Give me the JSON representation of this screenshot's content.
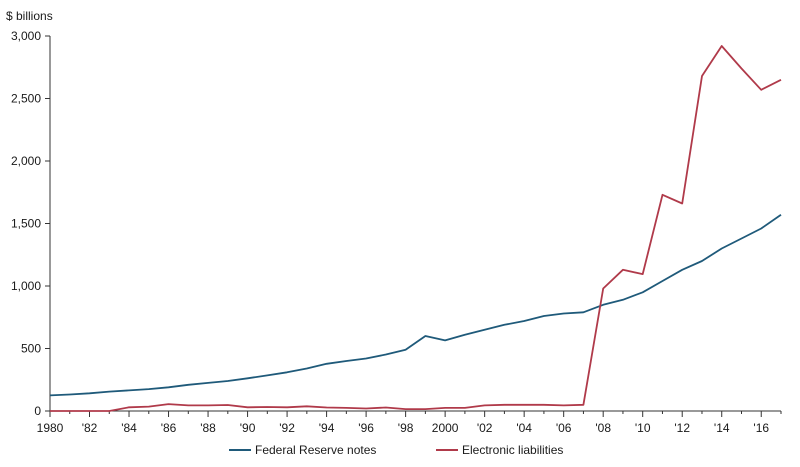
{
  "chart_data": {
    "type": "line",
    "title": "",
    "xlabel": "",
    "ylabel": "$ billions",
    "ylim": [
      0,
      3000
    ],
    "xlim": [
      1980,
      2017
    ],
    "grid": false,
    "legend_placement": "bottom-center",
    "y_ticks": [
      {
        "value": 0,
        "label": "0"
      },
      {
        "value": 500,
        "label": "500"
      },
      {
        "value": 1000,
        "label": "1,000"
      },
      {
        "value": 1500,
        "label": "1,500"
      },
      {
        "value": 2000,
        "label": "2,000"
      },
      {
        "value": 2500,
        "label": "2,500"
      },
      {
        "value": 3000,
        "label": "3,000"
      }
    ],
    "x_ticks": [
      {
        "value": 1980,
        "label": "1980"
      },
      {
        "value": 1982,
        "label": "'82"
      },
      {
        "value": 1984,
        "label": "'84"
      },
      {
        "value": 1986,
        "label": "'86"
      },
      {
        "value": 1988,
        "label": "'88"
      },
      {
        "value": 1990,
        "label": "'90"
      },
      {
        "value": 1992,
        "label": "'92"
      },
      {
        "value": 1994,
        "label": "'94"
      },
      {
        "value": 1996,
        "label": "'96"
      },
      {
        "value": 1998,
        "label": "'98"
      },
      {
        "value": 2000,
        "label": "2000"
      },
      {
        "value": 2002,
        "label": "'02"
      },
      {
        "value": 2004,
        "label": "'04"
      },
      {
        "value": 2006,
        "label": "'06"
      },
      {
        "value": 2008,
        "label": "'08"
      },
      {
        "value": 2010,
        "label": "'10"
      },
      {
        "value": 2012,
        "label": "'12"
      },
      {
        "value": 2014,
        "label": "'14"
      },
      {
        "value": 2016,
        "label": "'16"
      }
    ],
    "x_minor_ticks": [
      1981,
      1983,
      1985,
      1987,
      1989,
      1991,
      1993,
      1995,
      1997,
      1999,
      2001,
      2003,
      2005,
      2007,
      2009,
      2011,
      2013,
      2015,
      2017
    ],
    "series": [
      {
        "name": "Federal Reserve notes",
        "color": "#1f5a7a",
        "x": [
          1980,
          1981,
          1982,
          1983,
          1984,
          1985,
          1986,
          1987,
          1988,
          1989,
          1990,
          1991,
          1992,
          1993,
          1994,
          1995,
          1996,
          1997,
          1998,
          1999,
          2000,
          2001,
          2002,
          2003,
          2004,
          2005,
          2006,
          2007,
          2008,
          2009,
          2010,
          2011,
          2012,
          2013,
          2014,
          2015,
          2016,
          2017
        ],
        "values": [
          125,
          132,
          142,
          155,
          165,
          175,
          190,
          210,
          225,
          240,
          262,
          285,
          310,
          340,
          378,
          400,
          420,
          452,
          490,
          600,
          565,
          610,
          650,
          690,
          720,
          760,
          780,
          790,
          850,
          890,
          950,
          1040,
          1130,
          1200,
          1300,
          1380,
          1460,
          1570
        ]
      },
      {
        "name": "Electronic liabilities",
        "color": "#b03a4a",
        "x": [
          1980,
          1981,
          1982,
          1983,
          1984,
          1985,
          1986,
          1987,
          1988,
          1989,
          1990,
          1991,
          1992,
          1993,
          1994,
          1995,
          1996,
          1997,
          1998,
          1999,
          2000,
          2001,
          2002,
          2003,
          2004,
          2005,
          2006,
          2007,
          2008,
          2009,
          2010,
          2011,
          2012,
          2013,
          2014,
          2015,
          2016,
          2017
        ],
        "values": [
          0,
          0,
          0,
          0,
          30,
          35,
          55,
          45,
          45,
          48,
          30,
          32,
          30,
          38,
          28,
          25,
          20,
          28,
          15,
          15,
          25,
          25,
          45,
          50,
          50,
          50,
          45,
          50,
          980,
          1130,
          1095,
          1730,
          1660,
          2680,
          2920,
          2740,
          2570,
          2650
        ]
      }
    ]
  }
}
